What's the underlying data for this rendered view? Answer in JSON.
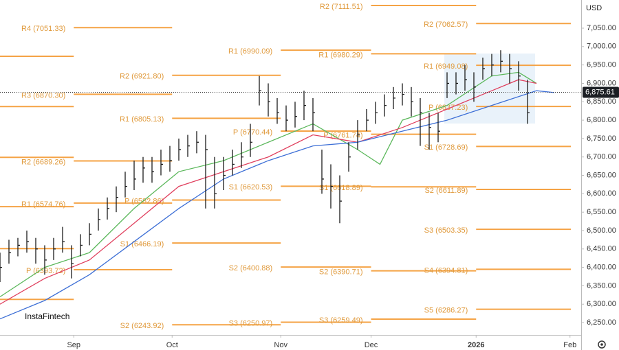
{
  "chart_data": {
    "type": "ohlc",
    "currency_label": "USD",
    "watermark": "InstaFintech",
    "xlim": [
      0,
      130
    ],
    "ylim": [
      6216.5,
      7126.5
    ],
    "xticks": [
      {
        "value": 16.5,
        "label": "Sep"
      },
      {
        "value": 38.5,
        "label": "Oct"
      },
      {
        "value": 62.8,
        "label": "Nov"
      },
      {
        "value": 83,
        "label": "Dec"
      },
      {
        "value": 106.5,
        "label": "2026"
      },
      {
        "value": 127.5,
        "label": "Feb"
      }
    ],
    "yticks": [
      {
        "value": 6250,
        "label": "6,250.00"
      },
      {
        "value": 6300,
        "label": "6,300.00"
      },
      {
        "value": 6350,
        "label": "6,350.00"
      },
      {
        "value": 6400,
        "label": "6,400.00"
      },
      {
        "value": 6450,
        "label": "6,450.00"
      },
      {
        "value": 6500,
        "label": "6,500.00"
      },
      {
        "value": 6550,
        "label": "6,550.00"
      },
      {
        "value": 6600,
        "label": "6,600.00"
      },
      {
        "value": 6650,
        "label": "6,650.00"
      },
      {
        "value": 6700,
        "label": "6,700.00"
      },
      {
        "value": 6750,
        "label": "6,750.00"
      },
      {
        "value": 6800,
        "label": "6,800.00"
      },
      {
        "value": 6850,
        "label": "6,850.00"
      },
      {
        "value": 6900,
        "label": "6,900.00"
      },
      {
        "value": 6950,
        "label": "6,950.00"
      },
      {
        "value": 7000,
        "label": "7,000.00"
      },
      {
        "value": 7050,
        "label": "7,050.00"
      }
    ],
    "last_price": {
      "value": 6875.61,
      "label": "6,875.61"
    },
    "pivot_color": "#f5a345",
    "pivots": [
      {
        "start": 0,
        "end": 16.5,
        "levels": [
          {
            "value": 6973.5
          },
          {
            "value": 6837
          },
          {
            "value": 6699
          },
          {
            "value": 6565
          },
          {
            "value": 6451
          },
          {
            "value": 6313
          }
        ]
      },
      {
        "start": 16.5,
        "end": 38.5,
        "levels": [
          {
            "value": 7051.33,
            "label": "R4 (7051.33)"
          },
          {
            "value": 6870.3,
            "label": "R3 (6870.30)"
          },
          {
            "value": 6689.26,
            "label": "R2 (6689.26)"
          },
          {
            "value": 6574.76,
            "label": "R1 (6574.76)"
          },
          {
            "value": 6393.72,
            "label": "P (6393.72)"
          }
        ]
      },
      {
        "start": 38.5,
        "end": 62.8,
        "levels": [
          {
            "value": 6921.8,
            "label": "R2 (6921.80)"
          },
          {
            "value": 6805.13,
            "label": "R1 (6805.13)"
          },
          {
            "value": 6582.86,
            "label": "P (6582.86)"
          },
          {
            "value": 6466.19,
            "label": "S1 (6466.19)"
          },
          {
            "value": 6243.92,
            "label": "S2 (6243.92)"
          }
        ]
      },
      {
        "start": 62.8,
        "end": 83,
        "levels": [
          {
            "value": 6990.09,
            "label": "R1 (6990.09)"
          },
          {
            "value": 6770.44,
            "label": "P (6770.44)"
          },
          {
            "value": 6620.53,
            "label": "S1 (6620.53)"
          },
          {
            "value": 6400.88,
            "label": "S2 (6400.88)"
          },
          {
            "value": 6250.97,
            "label": "S3 (6250.97)"
          }
        ]
      },
      {
        "start": 83,
        "end": 106.5,
        "levels": [
          {
            "value": 7111.51,
            "label": "R2 (7111.51)"
          },
          {
            "value": 6980.29,
            "label": "R1 (6980.29)"
          },
          {
            "value": 6761.74,
            "label": "P (6761.74)"
          },
          {
            "value": 6618.89,
            "label": "S1 (6618.89)"
          },
          {
            "value": 6390.71,
            "label": "S2 (6390.71)"
          },
          {
            "value": 6259.49,
            "label": "S3 (6259.49)"
          }
        ]
      },
      {
        "start": 106.5,
        "end": 127.7,
        "levels": [
          {
            "value": 7062.57,
            "label": "R2 (7062.57)"
          },
          {
            "value": 6949.08,
            "label": "R1 (6949.08)"
          },
          {
            "value": 6837.23,
            "label": "P (6837.23)"
          },
          {
            "value": 6728.69,
            "label": "S1 (6728.69)"
          },
          {
            "value": 6611.89,
            "label": "S2 (6611.89)"
          },
          {
            "value": 6503.35,
            "label": "S3 (6503.35)"
          },
          {
            "value": 6394.81,
            "label": "S4 (6394.81)"
          },
          {
            "value": 6286.27,
            "label": "S5 (6286.27)"
          }
        ]
      }
    ],
    "bars": {
      "color": "#1a1a1a",
      "x": [
        0,
        2,
        4,
        6,
        8,
        10,
        12,
        14,
        16,
        18,
        20,
        22,
        24,
        26,
        28,
        30,
        32,
        34,
        36,
        38,
        40,
        42,
        44,
        46,
        48,
        50,
        52,
        54,
        56,
        58,
        60,
        62,
        64,
        66,
        68,
        70,
        72,
        74,
        76,
        78,
        80,
        82,
        84,
        86,
        88,
        90,
        92,
        94,
        96,
        98,
        100,
        102,
        104,
        106,
        108,
        110,
        112,
        114,
        116,
        118
      ],
      "high": [
        6440,
        6475,
        6480,
        6500,
        6480,
        6460,
        6480,
        6510,
        6460,
        6490,
        6520,
        6560,
        6590,
        6620,
        6660,
        6690,
        6700,
        6700,
        6720,
        6730,
        6750,
        6760,
        6770,
        6760,
        6700,
        6700,
        6720,
        6740,
        6790,
        6920,
        6900,
        6860,
        6840,
        6850,
        6880,
        6860,
        6720,
        6680,
        6650,
        6740,
        6800,
        6830,
        6850,
        6870,
        6890,
        6900,
        6890,
        6860,
        6820,
        6820,
        6930,
        6930,
        6950,
        6930,
        6970,
        6980,
        6990,
        6980,
        6960,
        6910
      ],
      "low": [
        6360,
        6410,
        6430,
        6440,
        6410,
        6380,
        6420,
        6440,
        6370,
        6430,
        6460,
        6500,
        6530,
        6550,
        6590,
        6610,
        6630,
        6630,
        6650,
        6660,
        6690,
        6700,
        6710,
        6560,
        6560,
        6610,
        6650,
        6670,
        6700,
        6840,
        6810,
        6790,
        6770,
        6780,
        6800,
        6770,
        6600,
        6560,
        6520,
        6660,
        6720,
        6770,
        6790,
        6810,
        6830,
        6840,
        6810,
        6730,
        6720,
        6740,
        6860,
        6870,
        6880,
        6850,
        6910,
        6920,
        6930,
        6900,
        6880,
        6790
      ],
      "close": [
        6400,
        6440,
        6460,
        6470,
        6450,
        6420,
        6450,
        6470,
        6410,
        6460,
        6490,
        6530,
        6560,
        6590,
        6620,
        6640,
        6670,
        6660,
        6680,
        6690,
        6720,
        6730,
        6740,
        6720,
        6600,
        6650,
        6680,
        6700,
        6740,
        6880,
        6850,
        6820,
        6800,
        6810,
        6840,
        6820,
        6640,
        6620,
        6580,
        6700,
        6760,
        6800,
        6820,
        6840,
        6860,
        6870,
        6850,
        6820,
        6780,
        6770,
        6900,
        6900,
        6910,
        6890,
        6940,
        6950,
        6960,
        6940,
        6920,
        6820
      ]
    },
    "moving_averages": [
      {
        "color": "#5cb85c",
        "x": [
          0,
          10,
          20,
          30,
          40,
          50,
          60,
          70,
          80,
          85,
          90,
          100,
          110,
          116,
          120
        ],
        "values": [
          6320,
          6400,
          6440,
          6560,
          6660,
          6690,
          6740,
          6790,
          6720,
          6680,
          6800,
          6840,
          6920,
          6930,
          6900
        ]
      },
      {
        "color": "#e0405e",
        "x": [
          0,
          10,
          20,
          30,
          40,
          50,
          60,
          70,
          80,
          90,
          100,
          110,
          116,
          120
        ],
        "values": [
          6300,
          6370,
          6420,
          6520,
          6620,
          6660,
          6700,
          6760,
          6740,
          6780,
          6830,
          6880,
          6910,
          6900
        ]
      },
      {
        "color": "#3d6fd6",
        "x": [
          0,
          10,
          20,
          30,
          40,
          50,
          60,
          70,
          80,
          90,
          100,
          110,
          120,
          124
        ],
        "values": [
          6260,
          6310,
          6380,
          6470,
          6560,
          6640,
          6690,
          6730,
          6740,
          6770,
          6800,
          6840,
          6880,
          6875
        ]
      }
    ]
  }
}
